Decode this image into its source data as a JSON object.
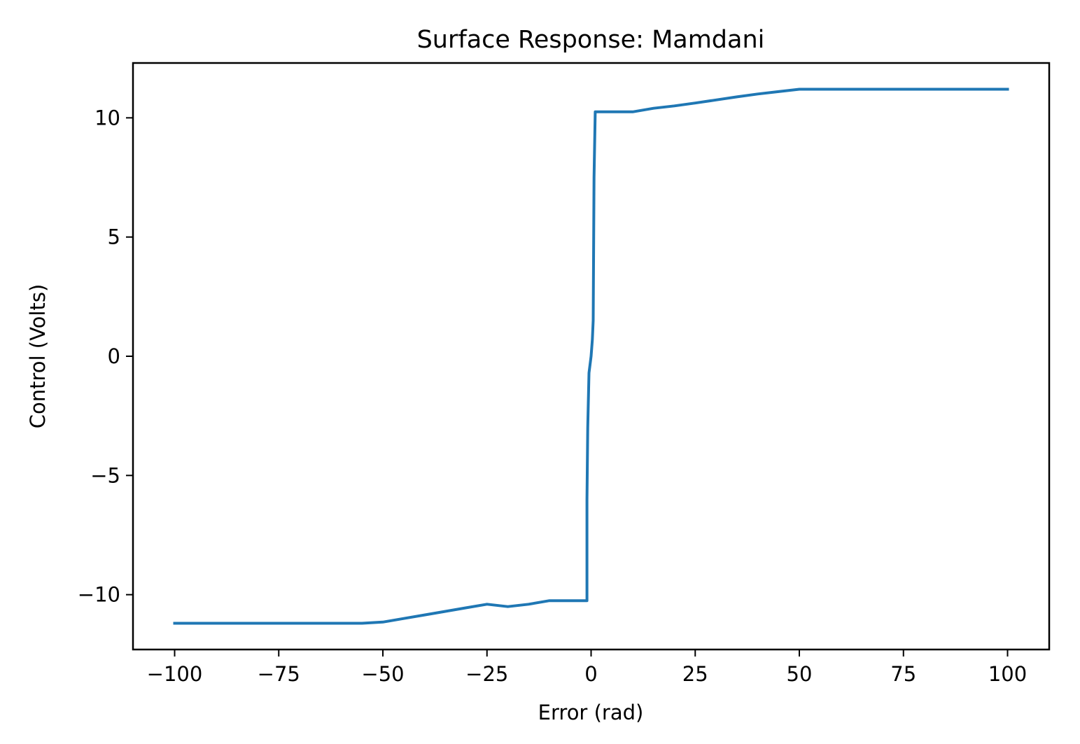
{
  "chart_data": {
    "type": "line",
    "title": "Surface Response: Mamdani",
    "xlabel": "Error (rad)",
    "ylabel": "Control (Volts)",
    "xlim": [
      -110,
      110
    ],
    "ylim": [
      -12.3,
      12.3
    ],
    "grid": false,
    "x_ticks": [
      -100,
      -75,
      -50,
      -25,
      0,
      25,
      50,
      75,
      100
    ],
    "y_ticks": [
      -10,
      -5,
      0,
      5,
      10
    ],
    "x_tick_labels": [
      "−100",
      "−75",
      "−50",
      "−25",
      "0",
      "25",
      "50",
      "75",
      "100"
    ],
    "y_tick_labels": [
      "−10",
      "−5",
      "0",
      "5",
      "10"
    ],
    "series_color": "#1f77b4",
    "series": [
      {
        "x": [
          -100,
          -55,
          -50,
          -45,
          -40,
          -35,
          -30,
          -25,
          -20,
          -15,
          -10,
          -5,
          -1,
          -1,
          -0.8,
          -0.5,
          0,
          0.3,
          0.5,
          0.7,
          1,
          1,
          5,
          10,
          15,
          20,
          25,
          30,
          35,
          40,
          45,
          50,
          55,
          100
        ],
        "y": [
          -11.2,
          -11.2,
          -11.15,
          -11.0,
          -10.85,
          -10.7,
          -10.55,
          -10.4,
          -10.5,
          -10.4,
          -10.25,
          -10.25,
          -10.25,
          -6.0,
          -3.0,
          -0.7,
          0.0,
          0.7,
          1.5,
          7.5,
          10.25,
          10.25,
          10.25,
          10.25,
          10.4,
          10.5,
          10.62,
          10.75,
          10.88,
          11.0,
          11.1,
          11.2,
          11.2,
          11.2
        ]
      }
    ]
  }
}
